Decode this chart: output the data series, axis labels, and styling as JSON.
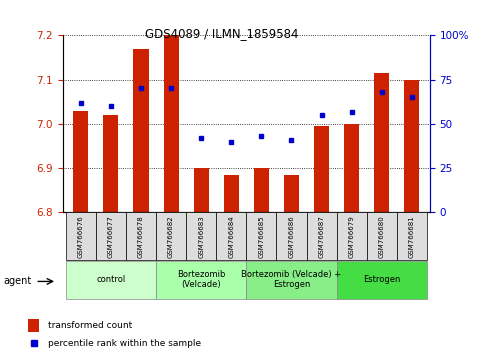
{
  "title": "GDS4089 / ILMN_1859584",
  "samples": [
    "GSM766676",
    "GSM766677",
    "GSM766678",
    "GSM766682",
    "GSM766683",
    "GSM766684",
    "GSM766685",
    "GSM766686",
    "GSM766687",
    "GSM766679",
    "GSM766680",
    "GSM766681"
  ],
  "bar_values": [
    7.03,
    7.02,
    7.17,
    7.2,
    6.9,
    6.885,
    6.9,
    6.885,
    6.995,
    7.0,
    7.115,
    7.1
  ],
  "dot_values": [
    62,
    60,
    70,
    70,
    42,
    40,
    43,
    41,
    55,
    57,
    68,
    65
  ],
  "ylim_left": [
    6.8,
    7.2
  ],
  "ylim_right": [
    0,
    100
  ],
  "yticks_left": [
    6.8,
    6.9,
    7.0,
    7.1,
    7.2
  ],
  "yticks_right": [
    0,
    25,
    50,
    75,
    100
  ],
  "ytick_labels_right": [
    "0",
    "25",
    "50",
    "75",
    "100%"
  ],
  "bar_color": "#cc2200",
  "dot_color": "#0000cc",
  "groups": [
    {
      "label": "control",
      "start": 0,
      "end": 3,
      "color": "#ccffcc"
    },
    {
      "label": "Bortezomib\n(Velcade)",
      "start": 3,
      "end": 6,
      "color": "#aaffaa"
    },
    {
      "label": "Bortezomib (Velcade) +\nEstrogen",
      "start": 6,
      "end": 9,
      "color": "#88ee88"
    },
    {
      "label": "Estrogen",
      "start": 9,
      "end": 12,
      "color": "#44dd44"
    }
  ],
  "agent_label": "agent",
  "legend_bar_label": "transformed count",
  "legend_dot_label": "percentile rank within the sample",
  "bar_baseline": 6.8
}
